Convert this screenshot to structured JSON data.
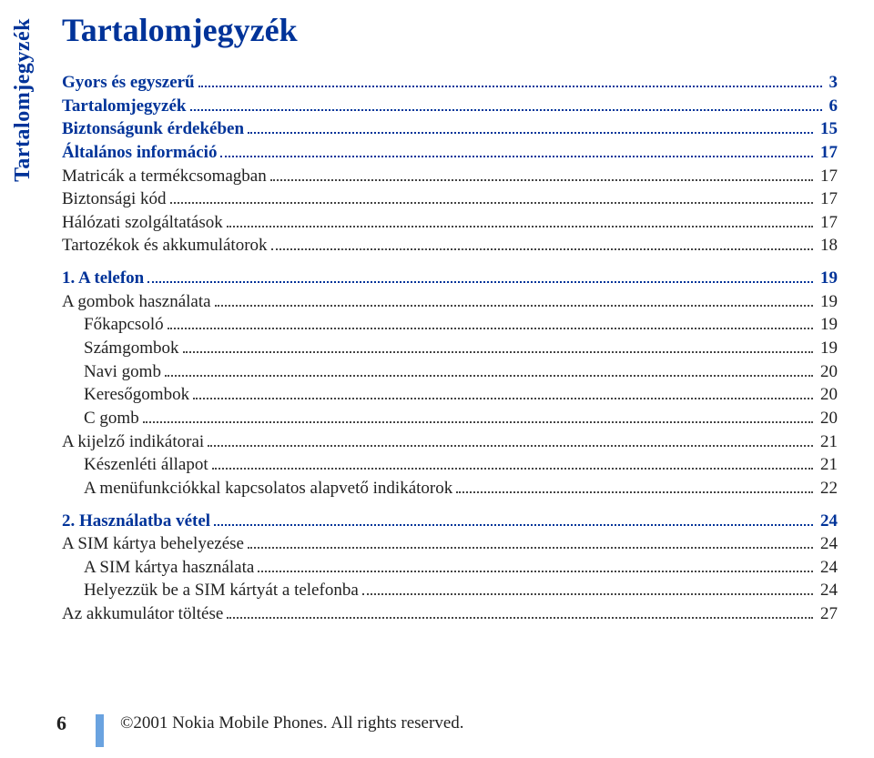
{
  "side_label": "Tartalomjegyzék",
  "title": "Tartalomjegyzék",
  "colors": {
    "accent": "#003399",
    "text": "#222222",
    "dots": "#444444",
    "bar": "#6aa3e0",
    "background": "#ffffff"
  },
  "typography": {
    "title_fontsize": 36,
    "side_fontsize": 24,
    "body_fontsize": 19,
    "footer_fontsize": 19,
    "pagenum_fontsize": 22
  },
  "toc": [
    {
      "label": "Gyors és egyszerű",
      "page": "3",
      "level": 1,
      "bold": true
    },
    {
      "label": "Tartalomjegyzék",
      "page": "6",
      "level": 1,
      "bold": true
    },
    {
      "label": "Biztonságunk érdekében",
      "page": "15",
      "level": 1,
      "bold": true
    },
    {
      "label": "Általános információ",
      "page": "17",
      "level": 1,
      "bold": true
    },
    {
      "label": "Matricák a termékcsomagban",
      "page": "17",
      "level": 1,
      "bold": false
    },
    {
      "label": "Biztonsági kód",
      "page": "17",
      "level": 1,
      "bold": false
    },
    {
      "label": "Hálózati szolgáltatások",
      "page": "17",
      "level": 1,
      "bold": false
    },
    {
      "label": "Tartozékok és akkumulátorok",
      "page": "18",
      "level": 1,
      "bold": false
    },
    {
      "label": "1. A telefon",
      "page": "19",
      "level": 1,
      "bold": true,
      "gap_before": true
    },
    {
      "label": "A gombok használata",
      "page": "19",
      "level": 1,
      "bold": false
    },
    {
      "label": "Főkapcsoló",
      "page": "19",
      "level": 2,
      "bold": false
    },
    {
      "label": "Számgombok",
      "page": "19",
      "level": 2,
      "bold": false
    },
    {
      "label": "Navi gomb",
      "page": "20",
      "level": 2,
      "bold": false
    },
    {
      "label": "Keresőgombok",
      "page": "20",
      "level": 2,
      "bold": false
    },
    {
      "label": "C gomb",
      "page": "20",
      "level": 2,
      "bold": false
    },
    {
      "label": "A kijelző indikátorai",
      "page": "21",
      "level": 1,
      "bold": false
    },
    {
      "label": "Készenléti állapot",
      "page": "21",
      "level": 2,
      "bold": false
    },
    {
      "label": "A menüfunkciókkal kapcsolatos alapvető indikátorok",
      "page": "22",
      "level": 2,
      "bold": false
    },
    {
      "label": "2. Használatba vétel",
      "page": "24",
      "level": 1,
      "bold": true,
      "gap_before": true
    },
    {
      "label": "A SIM kártya behelyezése",
      "page": "24",
      "level": 1,
      "bold": false
    },
    {
      "label": "A SIM kártya használata",
      "page": "24",
      "level": 2,
      "bold": false
    },
    {
      "label": "Helyezzük be a SIM kártyát a telefonba",
      "page": "24",
      "level": 2,
      "bold": false
    },
    {
      "label": "Az akkumulátor töltése",
      "page": "27",
      "level": 1,
      "bold": false
    }
  ],
  "footer": {
    "page_number": "6",
    "copyright": "©2001 Nokia Mobile Phones. All rights reserved."
  }
}
